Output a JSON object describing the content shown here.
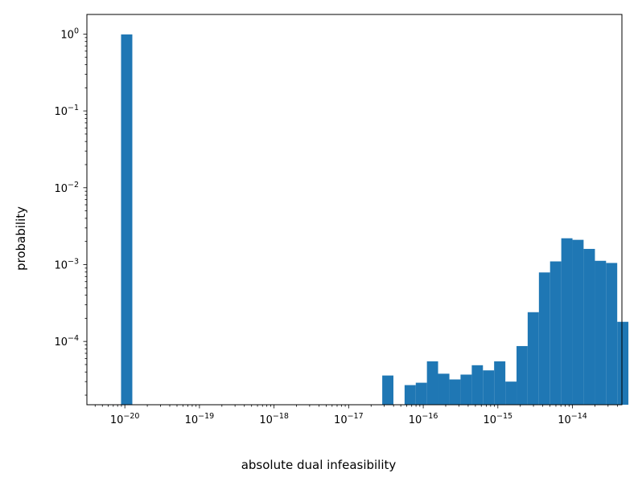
{
  "chart_data": {
    "type": "bar",
    "title": "",
    "xlabel": "absolute dual infeasibility",
    "ylabel": "probability",
    "xscale": "log",
    "yscale": "log",
    "xlim": [
      3.1e-21,
      4.6e-14
    ],
    "ylim": [
      1.5e-05,
      1.8
    ],
    "grid": false,
    "legend": "none",
    "color": "#1f77b4",
    "bin_edges_log10": [
      -20.05,
      -19.9
    ],
    "x_tick_labels": [
      "10^-20",
      "10^-19",
      "10^-18",
      "10^-17",
      "10^-16",
      "10^-15",
      "10^-14"
    ],
    "x_tick_values": [
      1e-20,
      1e-19,
      1e-18,
      1e-17,
      1e-16,
      1e-15,
      1e-14
    ],
    "y_tick_labels": [
      "10^-4",
      "10^-3",
      "10^-2",
      "10^-1",
      "10^0"
    ],
    "y_tick_values": [
      0.0001,
      0.001,
      0.01,
      0.1,
      1
    ],
    "bins": [
      {
        "x0": 8.9e-21,
        "x1": 1.26e-20,
        "value": 0.99
      },
      {
        "x0": 2.82e-17,
        "x1": 3.98e-17,
        "value": 3.6e-05
      },
      {
        "x0": 5.62e-17,
        "x1": 7.94e-17,
        "value": 2.7e-05
      },
      {
        "x0": 7.94e-17,
        "x1": 1.12e-16,
        "value": 2.9e-05
      },
      {
        "x0": 1.12e-16,
        "x1": 1.58e-16,
        "value": 5.5e-05
      },
      {
        "x0": 1.58e-16,
        "x1": 2.24e-16,
        "value": 3.8e-05
      },
      {
        "x0": 2.24e-16,
        "x1": 3.16e-16,
        "value": 3.2e-05
      },
      {
        "x0": 3.16e-16,
        "x1": 4.47e-16,
        "value": 3.7e-05
      },
      {
        "x0": 4.47e-16,
        "x1": 6.31e-16,
        "value": 4.9e-05
      },
      {
        "x0": 6.31e-16,
        "x1": 8.91e-16,
        "value": 4.2e-05
      },
      {
        "x0": 8.91e-16,
        "x1": 1.26e-15,
        "value": 5.5e-05
      },
      {
        "x0": 1.26e-15,
        "x1": 1.78e-15,
        "value": 3e-05
      },
      {
        "x0": 1.78e-15,
        "x1": 2.51e-15,
        "value": 8.7e-05
      },
      {
        "x0": 2.51e-15,
        "x1": 3.55e-15,
        "value": 0.00024
      },
      {
        "x0": 3.55e-15,
        "x1": 5.01e-15,
        "value": 0.00079
      },
      {
        "x0": 5.01e-15,
        "x1": 7.08e-15,
        "value": 0.0011
      },
      {
        "x0": 7.08e-15,
        "x1": 1e-14,
        "value": 0.0022
      },
      {
        "x0": 1e-14,
        "x1": 1.41e-14,
        "value": 0.0021
      },
      {
        "x0": 1.41e-14,
        "x1": 2e-14,
        "value": 0.0016
      },
      {
        "x0": 2e-14,
        "x1": 2.82e-14,
        "value": 0.00112
      },
      {
        "x0": 2.82e-14,
        "x1": 3.98e-14,
        "value": 0.00105
      },
      {
        "x0": 3.98e-14,
        "x1": 5.62e-14,
        "value": 0.00018
      }
    ]
  }
}
